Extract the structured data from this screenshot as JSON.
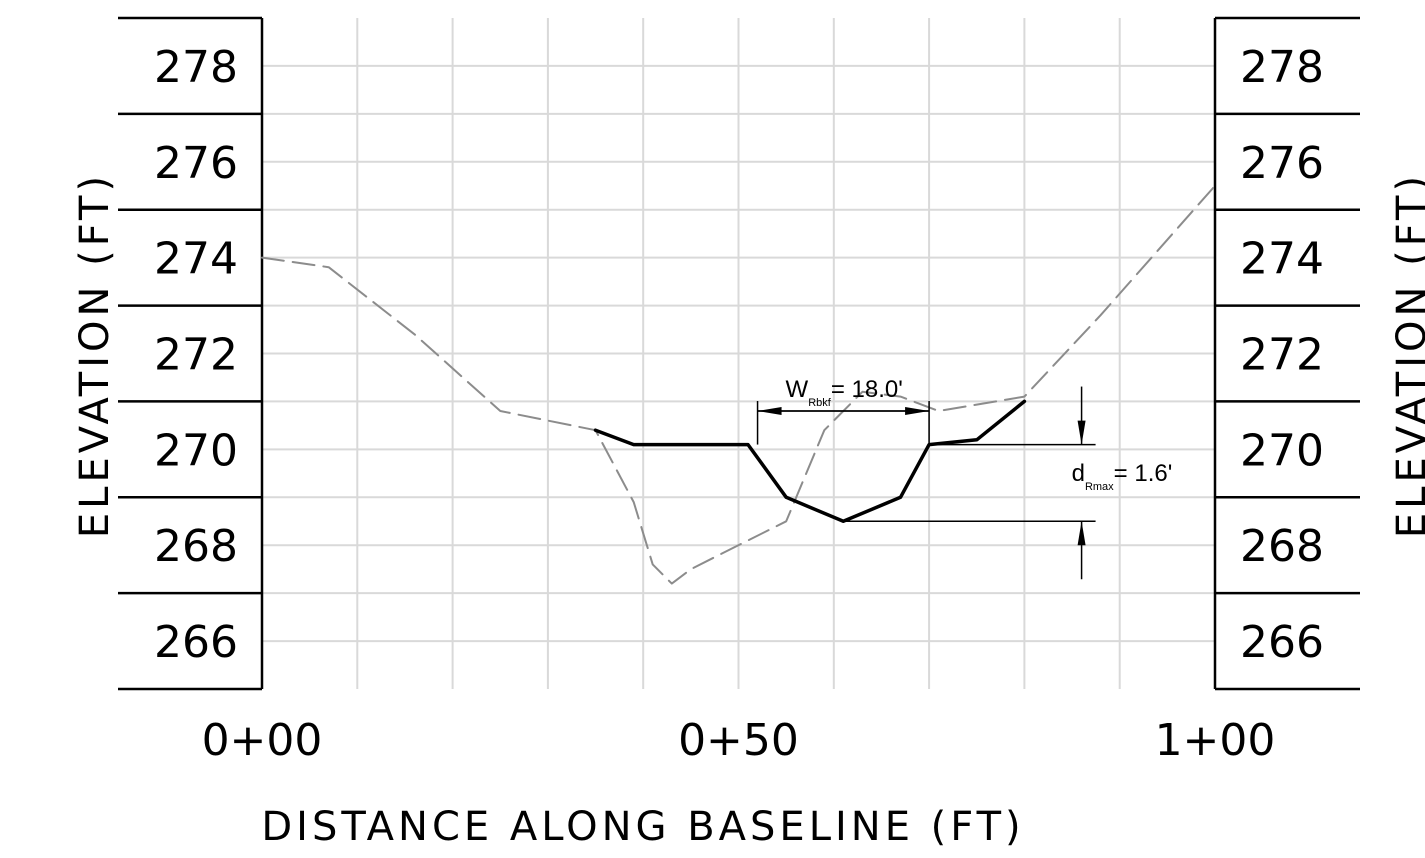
{
  "chart_data": {
    "type": "line",
    "xlabel": "DISTANCE ALONG BASELINE (FT)",
    "ylabel_left": "ELEVATION (FT)",
    "ylabel_right": "ELEVATION (FT)",
    "x_ticks": [
      {
        "value": 0,
        "label": "0+00"
      },
      {
        "value": 50,
        "label": "0+50"
      },
      {
        "value": 100,
        "label": "1+00"
      }
    ],
    "y_ticks": [
      266,
      268,
      270,
      272,
      274,
      276,
      278
    ],
    "xlim": [
      0,
      100
    ],
    "ylim": [
      265,
      279
    ],
    "grid": true,
    "series": [
      {
        "style": "dashed",
        "color": "#8c8c8c",
        "points": [
          [
            0,
            274.0
          ],
          [
            7,
            273.8
          ],
          [
            16,
            272.4
          ],
          [
            25,
            270.8
          ],
          [
            35,
            270.4
          ],
          [
            39,
            268.9
          ],
          [
            41,
            267.6
          ],
          [
            43,
            267.2
          ],
          [
            45,
            267.5
          ],
          [
            48,
            267.8
          ],
          [
            55,
            268.5
          ],
          [
            59,
            270.4
          ],
          [
            63,
            271.2
          ],
          [
            67,
            271.1
          ],
          [
            71,
            270.8
          ],
          [
            80,
            271.1
          ],
          [
            88,
            272.8
          ],
          [
            100,
            275.5
          ]
        ]
      },
      {
        "style": "solid",
        "color": "#000000",
        "points": [
          [
            35,
            270.4
          ],
          [
            39,
            270.1
          ],
          [
            51,
            270.1
          ],
          [
            55,
            269.0
          ],
          [
            61,
            268.5
          ],
          [
            67,
            269.0
          ],
          [
            70,
            270.1
          ],
          [
            75,
            270.2
          ],
          [
            80,
            271.0
          ]
        ]
      }
    ],
    "annotations": {
      "width": {
        "main": "W",
        "sub": "Rbkf",
        "rest": "= 18.0'",
        "x1": 52,
        "x2": 70,
        "y": 270.8
      },
      "depth": {
        "main": "d",
        "sub": "Rmax",
        "rest": "= 1.6'",
        "top": 270.1,
        "bottom": 268.5,
        "x": 86
      }
    }
  }
}
